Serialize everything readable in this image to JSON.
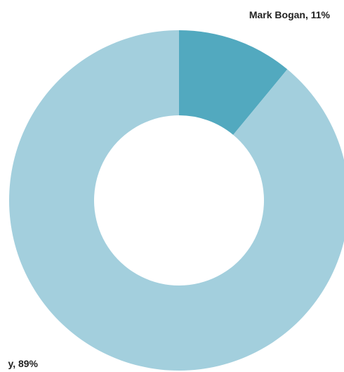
{
  "chart_data": {
    "type": "pie",
    "variant": "donut",
    "title": "",
    "legend": "none",
    "slices": [
      {
        "name": "Mark Bogan",
        "value": 11,
        "label": "Mark Bogan, 11%",
        "color": "#52a9bf"
      },
      {
        "name": "",
        "value": 89,
        "label": "y, 89%",
        "color": "#a3cfdd"
      }
    ]
  }
}
